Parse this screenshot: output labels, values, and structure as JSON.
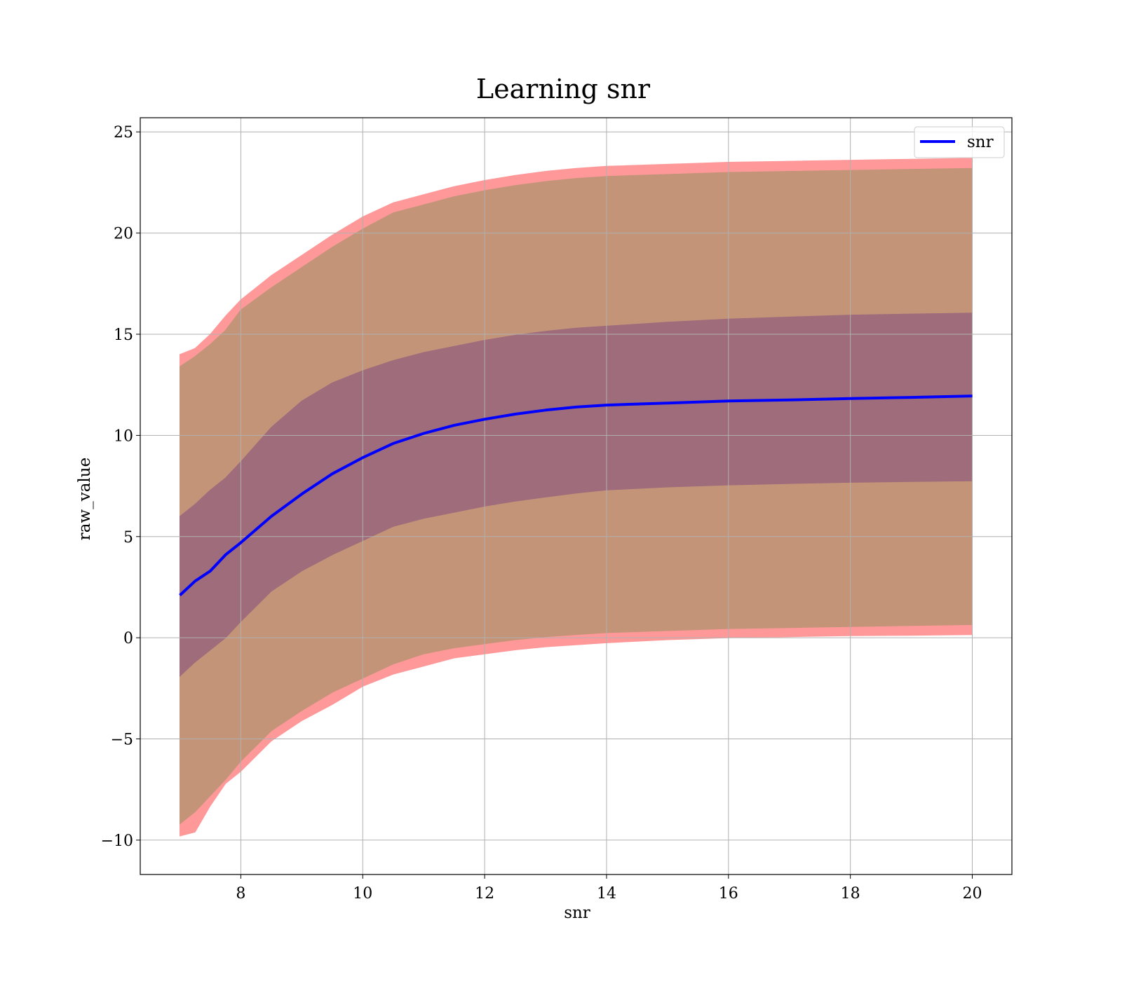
{
  "chart_data": {
    "type": "line",
    "title": "Learning snr",
    "xlabel": "snr",
    "ylabel": "raw_value",
    "xlim": [
      6.35,
      20.65
    ],
    "ylim": [
      -11.7,
      25.7
    ],
    "grid": true,
    "legend_placement": "top-right",
    "x_ticks": [
      8,
      10,
      12,
      14,
      16,
      18,
      20
    ],
    "y_ticks": [
      -10,
      -5,
      0,
      5,
      10,
      15,
      20,
      25
    ],
    "x_tick_labels": [
      "8",
      "10",
      "12",
      "14",
      "16",
      "18",
      "20"
    ],
    "y_tick_labels": [
      "−10",
      "−5",
      "0",
      "5",
      "10",
      "15",
      "20",
      "25"
    ],
    "x": [
      7.0,
      7.25,
      7.5,
      7.75,
      8.0,
      8.5,
      9.0,
      9.5,
      10.0,
      10.5,
      11.0,
      11.5,
      12.0,
      12.5,
      13.0,
      13.5,
      14.0,
      15.0,
      16.0,
      17.0,
      18.0,
      19.0,
      20.0
    ],
    "series": [
      {
        "name": "snr",
        "color": "#0000ff",
        "values": [
          2.1,
          2.8,
          3.3,
          4.1,
          4.7,
          6.0,
          7.1,
          8.1,
          8.9,
          9.6,
          10.1,
          10.5,
          10.8,
          11.05,
          11.25,
          11.4,
          11.5,
          11.6,
          11.7,
          11.75,
          11.82,
          11.88,
          11.95
        ]
      }
    ],
    "bands": [
      {
        "role": "outer",
        "color": "#ff9999",
        "upper": [
          14.0,
          14.3,
          15.0,
          15.9,
          16.7,
          17.9,
          18.9,
          19.9,
          20.8,
          21.5,
          21.9,
          22.3,
          22.6,
          22.85,
          23.05,
          23.2,
          23.3,
          23.4,
          23.5,
          23.55,
          23.6,
          23.65,
          23.7
        ],
        "lower": [
          -9.8,
          -9.6,
          -8.3,
          -7.2,
          -6.6,
          -5.1,
          -4.1,
          -3.3,
          -2.4,
          -1.8,
          -1.4,
          -1.0,
          -0.8,
          -0.6,
          -0.45,
          -0.35,
          -0.25,
          -0.1,
          0.0,
          0.05,
          0.1,
          0.12,
          0.15
        ]
      },
      {
        "role": "middle",
        "color": "#c49479",
        "upper": [
          13.4,
          13.9,
          14.5,
          15.2,
          16.2,
          17.3,
          18.3,
          19.3,
          20.2,
          21.0,
          21.4,
          21.8,
          22.1,
          22.35,
          22.55,
          22.7,
          22.8,
          22.9,
          23.0,
          23.05,
          23.1,
          23.15,
          23.2
        ],
        "lower": [
          -9.2,
          -8.6,
          -7.8,
          -7.0,
          -6.1,
          -4.6,
          -3.6,
          -2.7,
          -2.0,
          -1.3,
          -0.8,
          -0.5,
          -0.3,
          -0.1,
          0.05,
          0.15,
          0.25,
          0.35,
          0.45,
          0.5,
          0.55,
          0.6,
          0.65
        ]
      },
      {
        "role": "inner",
        "color": "#9e6c7b",
        "upper": [
          6.0,
          6.6,
          7.3,
          7.9,
          8.7,
          10.4,
          11.7,
          12.6,
          13.2,
          13.7,
          14.1,
          14.4,
          14.7,
          14.95,
          15.15,
          15.3,
          15.4,
          15.6,
          15.75,
          15.85,
          15.95,
          16.0,
          16.05
        ],
        "lower": [
          -1.9,
          -1.2,
          -0.6,
          0.0,
          0.8,
          2.3,
          3.3,
          4.1,
          4.8,
          5.5,
          5.9,
          6.2,
          6.5,
          6.75,
          6.95,
          7.15,
          7.3,
          7.45,
          7.55,
          7.62,
          7.68,
          7.72,
          7.75
        ]
      }
    ]
  }
}
